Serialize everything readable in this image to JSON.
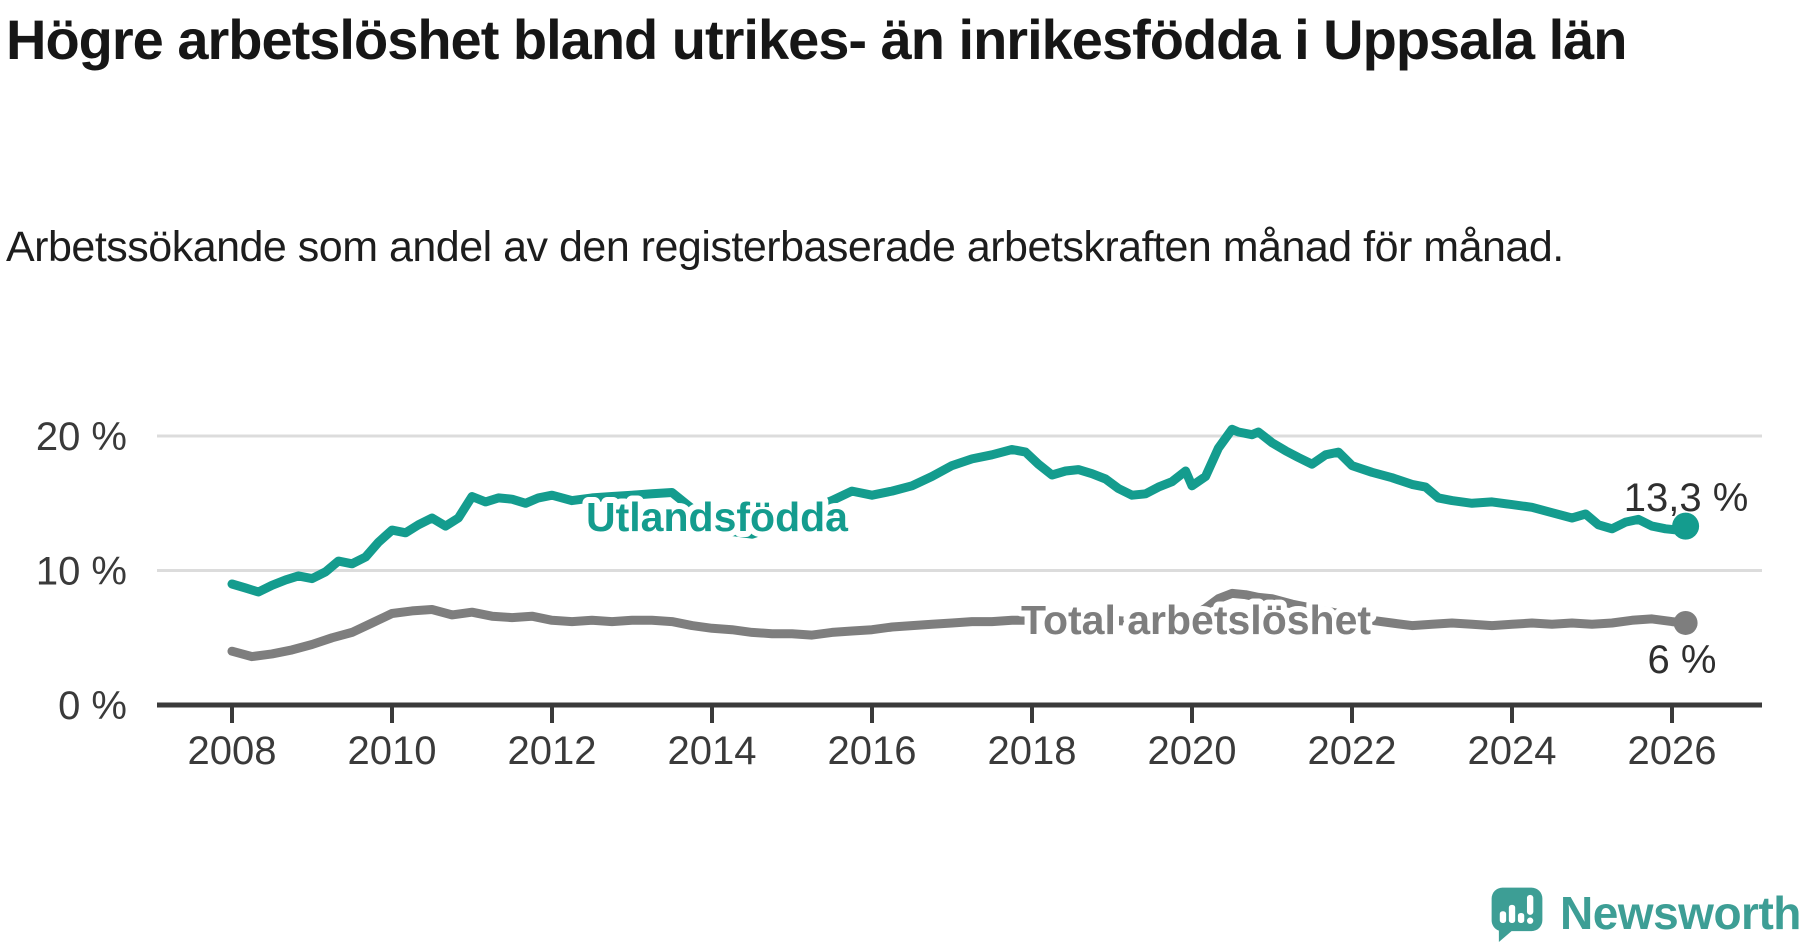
{
  "header": {
    "title": "Högre arbetslöshet bland utrikes- än inrikesfödda i Uppsala län",
    "subtitle": "Arbetssökande som andel av den registerbaserade arbetskraften månad för månad."
  },
  "branding": {
    "logo_text": "Newsworthy",
    "logo_color": "#3d9e95"
  },
  "colors": {
    "foreign_born_line": "#149c8e",
    "total_line": "#7e7e7e",
    "axis": "#3a3a3a",
    "gridline": "#dcdcdc"
  },
  "chart_data": {
    "type": "line",
    "title": "Högre arbetslöshet bland utrikes- än inrikesfödda i Uppsala län",
    "subtitle": "Arbetssökande som andel av den registerbaserade arbetskraften månad för månad.",
    "unit": "%",
    "grid": "horizontal-only",
    "legend_position": "inline-on-line",
    "x_axis": {
      "range_years": [
        2008,
        2026.3
      ],
      "ticks": [
        {
          "year": 2008,
          "label": "2008"
        },
        {
          "year": 2010,
          "label": "2010"
        },
        {
          "year": 2012,
          "label": "2012"
        },
        {
          "year": 2014,
          "label": "2014"
        },
        {
          "year": 2016,
          "label": "2016"
        },
        {
          "year": 2018,
          "label": "2018"
        },
        {
          "year": 2020,
          "label": "2020"
        },
        {
          "year": 2022,
          "label": "2022"
        },
        {
          "year": 2024,
          "label": "2024"
        },
        {
          "year": 2026,
          "label": "2026"
        }
      ]
    },
    "y_axis": {
      "range": [
        0,
        21.5
      ],
      "ticks": [
        {
          "value": 20,
          "label": "20 %"
        },
        {
          "value": 10,
          "label": "10 %"
        },
        {
          "value": 0,
          "label": "0 %"
        }
      ]
    },
    "series": [
      {
        "name": "Utlandsfödda",
        "color": "#149c8e",
        "end_label": "13,3 %",
        "end_value": 13.3,
        "points": [
          [
            2008.0,
            9.0
          ],
          [
            2008.17,
            8.7
          ],
          [
            2008.33,
            8.4
          ],
          [
            2008.5,
            8.9
          ],
          [
            2008.67,
            9.3
          ],
          [
            2008.83,
            9.6
          ],
          [
            2009.0,
            9.4
          ],
          [
            2009.17,
            9.9
          ],
          [
            2009.33,
            10.7
          ],
          [
            2009.5,
            10.5
          ],
          [
            2009.67,
            11.0
          ],
          [
            2009.83,
            12.1
          ],
          [
            2010.0,
            13.0
          ],
          [
            2010.17,
            12.8
          ],
          [
            2010.33,
            13.4
          ],
          [
            2010.5,
            13.9
          ],
          [
            2010.67,
            13.3
          ],
          [
            2010.83,
            13.9
          ],
          [
            2011.0,
            15.5
          ],
          [
            2011.17,
            15.1
          ],
          [
            2011.33,
            15.4
          ],
          [
            2011.5,
            15.3
          ],
          [
            2011.67,
            15.0
          ],
          [
            2011.83,
            15.4
          ],
          [
            2012.0,
            15.6
          ],
          [
            2012.25,
            15.2
          ],
          [
            2012.5,
            15.4
          ],
          [
            2012.75,
            15.5
          ],
          [
            2013.0,
            15.6
          ],
          [
            2013.25,
            15.7
          ],
          [
            2013.5,
            15.8
          ],
          [
            2013.75,
            14.6
          ],
          [
            2014.0,
            13.4
          ],
          [
            2014.25,
            12.9
          ],
          [
            2014.5,
            12.7
          ],
          [
            2014.75,
            13.2
          ],
          [
            2015.0,
            13.9
          ],
          [
            2015.25,
            14.6
          ],
          [
            2015.5,
            15.2
          ],
          [
            2015.75,
            15.9
          ],
          [
            2016.0,
            15.6
          ],
          [
            2016.25,
            15.9
          ],
          [
            2016.5,
            16.3
          ],
          [
            2016.75,
            17.0
          ],
          [
            2017.0,
            17.8
          ],
          [
            2017.25,
            18.3
          ],
          [
            2017.5,
            18.6
          ],
          [
            2017.75,
            19.0
          ],
          [
            2017.92,
            18.8
          ],
          [
            2018.08,
            17.9
          ],
          [
            2018.25,
            17.1
          ],
          [
            2018.42,
            17.4
          ],
          [
            2018.58,
            17.5
          ],
          [
            2018.75,
            17.2
          ],
          [
            2018.92,
            16.8
          ],
          [
            2019.08,
            16.1
          ],
          [
            2019.25,
            15.6
          ],
          [
            2019.42,
            15.7
          ],
          [
            2019.58,
            16.2
          ],
          [
            2019.75,
            16.6
          ],
          [
            2019.92,
            17.4
          ],
          [
            2020.0,
            16.3
          ],
          [
            2020.17,
            17.0
          ],
          [
            2020.33,
            19.1
          ],
          [
            2020.5,
            20.5
          ],
          [
            2020.58,
            20.3
          ],
          [
            2020.75,
            20.1
          ],
          [
            2020.83,
            20.3
          ],
          [
            2021.0,
            19.5
          ],
          [
            2021.17,
            18.9
          ],
          [
            2021.33,
            18.4
          ],
          [
            2021.5,
            17.9
          ],
          [
            2021.67,
            18.6
          ],
          [
            2021.83,
            18.8
          ],
          [
            2022.0,
            17.8
          ],
          [
            2022.25,
            17.3
          ],
          [
            2022.5,
            16.9
          ],
          [
            2022.75,
            16.4
          ],
          [
            2022.92,
            16.2
          ],
          [
            2023.08,
            15.4
          ],
          [
            2023.25,
            15.2
          ],
          [
            2023.5,
            15.0
          ],
          [
            2023.75,
            15.1
          ],
          [
            2024.0,
            14.9
          ],
          [
            2024.25,
            14.7
          ],
          [
            2024.5,
            14.3
          ],
          [
            2024.75,
            13.9
          ],
          [
            2024.92,
            14.2
          ],
          [
            2025.08,
            13.4
          ],
          [
            2025.25,
            13.1
          ],
          [
            2025.42,
            13.6
          ],
          [
            2025.58,
            13.8
          ],
          [
            2025.75,
            13.3
          ],
          [
            2025.92,
            13.1
          ],
          [
            2026.08,
            13.0
          ],
          [
            2026.17,
            13.3
          ]
        ]
      },
      {
        "name": "Total arbetslöshet",
        "color": "#7e7e7e",
        "end_label": "6 %",
        "end_value": 6.1,
        "points": [
          [
            2008.0,
            4.0
          ],
          [
            2008.25,
            3.6
          ],
          [
            2008.5,
            3.8
          ],
          [
            2008.75,
            4.1
          ],
          [
            2009.0,
            4.5
          ],
          [
            2009.25,
            5.0
          ],
          [
            2009.5,
            5.4
          ],
          [
            2009.75,
            6.1
          ],
          [
            2010.0,
            6.8
          ],
          [
            2010.25,
            7.0
          ],
          [
            2010.5,
            7.1
          ],
          [
            2010.75,
            6.7
          ],
          [
            2011.0,
            6.9
          ],
          [
            2011.25,
            6.6
          ],
          [
            2011.5,
            6.5
          ],
          [
            2011.75,
            6.6
          ],
          [
            2012.0,
            6.3
          ],
          [
            2012.25,
            6.2
          ],
          [
            2012.5,
            6.3
          ],
          [
            2012.75,
            6.2
          ],
          [
            2013.0,
            6.3
          ],
          [
            2013.25,
            6.3
          ],
          [
            2013.5,
            6.2
          ],
          [
            2013.75,
            5.9
          ],
          [
            2014.0,
            5.7
          ],
          [
            2014.25,
            5.6
          ],
          [
            2014.5,
            5.4
          ],
          [
            2014.75,
            5.3
          ],
          [
            2015.0,
            5.3
          ],
          [
            2015.25,
            5.2
          ],
          [
            2015.5,
            5.4
          ],
          [
            2015.75,
            5.5
          ],
          [
            2016.0,
            5.6
          ],
          [
            2016.25,
            5.8
          ],
          [
            2016.5,
            5.9
          ],
          [
            2016.75,
            6.0
          ],
          [
            2017.0,
            6.1
          ],
          [
            2017.25,
            6.2
          ],
          [
            2017.5,
            6.2
          ],
          [
            2017.75,
            6.3
          ],
          [
            2018.0,
            6.3
          ],
          [
            2018.25,
            6.2
          ],
          [
            2018.5,
            6.3
          ],
          [
            2018.75,
            6.4
          ],
          [
            2019.0,
            6.3
          ],
          [
            2019.25,
            6.2
          ],
          [
            2019.5,
            6.3
          ],
          [
            2019.75,
            6.5
          ],
          [
            2020.0,
            6.6
          ],
          [
            2020.17,
            7.2
          ],
          [
            2020.33,
            7.9
          ],
          [
            2020.5,
            8.3
          ],
          [
            2020.67,
            8.2
          ],
          [
            2020.83,
            8.0
          ],
          [
            2021.0,
            7.9
          ],
          [
            2021.25,
            7.5
          ],
          [
            2021.5,
            7.2
          ],
          [
            2021.75,
            6.9
          ],
          [
            2022.0,
            6.6
          ],
          [
            2022.25,
            6.3
          ],
          [
            2022.5,
            6.1
          ],
          [
            2022.75,
            5.9
          ],
          [
            2023.0,
            6.0
          ],
          [
            2023.25,
            6.1
          ],
          [
            2023.5,
            6.0
          ],
          [
            2023.75,
            5.9
          ],
          [
            2024.0,
            6.0
          ],
          [
            2024.25,
            6.1
          ],
          [
            2024.5,
            6.0
          ],
          [
            2024.75,
            6.1
          ],
          [
            2025.0,
            6.0
          ],
          [
            2025.25,
            6.1
          ],
          [
            2025.5,
            6.3
          ],
          [
            2025.75,
            6.4
          ],
          [
            2026.0,
            6.2
          ],
          [
            2026.17,
            6.1
          ]
        ]
      }
    ]
  }
}
